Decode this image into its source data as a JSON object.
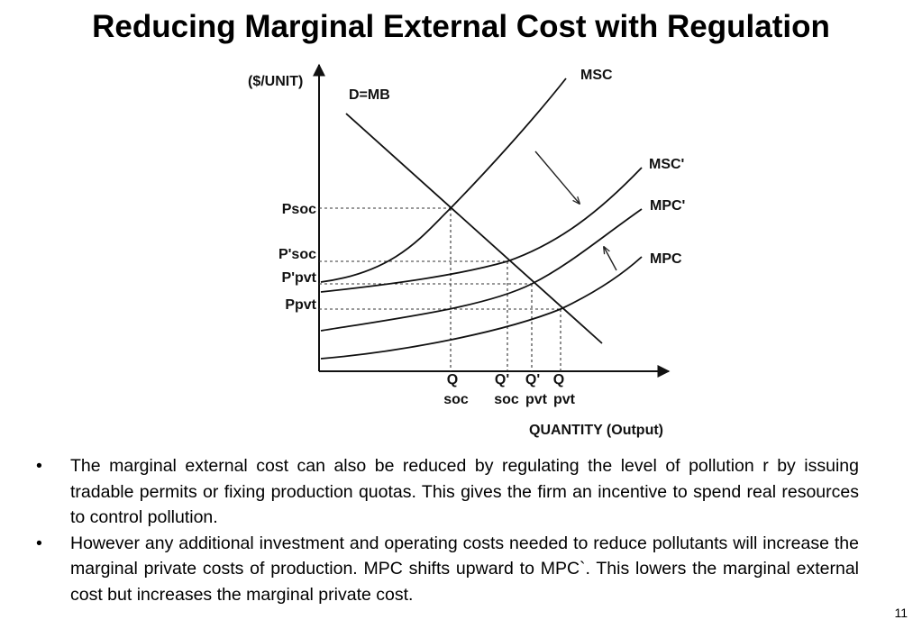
{
  "slide": {
    "title": "Reducing Marginal External Cost with Regulation",
    "number": "11"
  },
  "diagram": {
    "y_axis_label": "($/UNIT)",
    "x_axis_label": "QUANTITY (Output)",
    "curves": {
      "demand": "D=MB",
      "msc": "MSC",
      "msc_prime": "MSC'",
      "mpc_prime": "MPC'",
      "mpc": "MPC"
    },
    "price_labels": {
      "p_soc": "Psoc",
      "p_soc_prime": "P'soc",
      "p_pvt_prime": "P'pvt",
      "p_pvt": "Ppvt"
    },
    "quantity_labels": [
      {
        "top": "Q",
        "bottom": "soc"
      },
      {
        "top": "Q'",
        "bottom": "soc"
      },
      {
        "top": "Q'",
        "bottom": "pvt"
      },
      {
        "top": "Q",
        "bottom": "pvt"
      }
    ],
    "arrows": [
      "down-right-arrow",
      "up-left-arrow"
    ]
  },
  "bullets": [
    "The marginal external cost can also be reduced by regulating the level of pollution r by issuing tradable permits or fixing production quotas. This gives the firm an incentive to spend real resources to control pollution.",
    "However any additional investment and operating costs needed to reduce pollutants will increase the marginal private costs of production. MPC shifts upward to MPC`. This lowers the marginal external cost but increases the marginal private cost."
  ],
  "bullet_symbol": "•"
}
